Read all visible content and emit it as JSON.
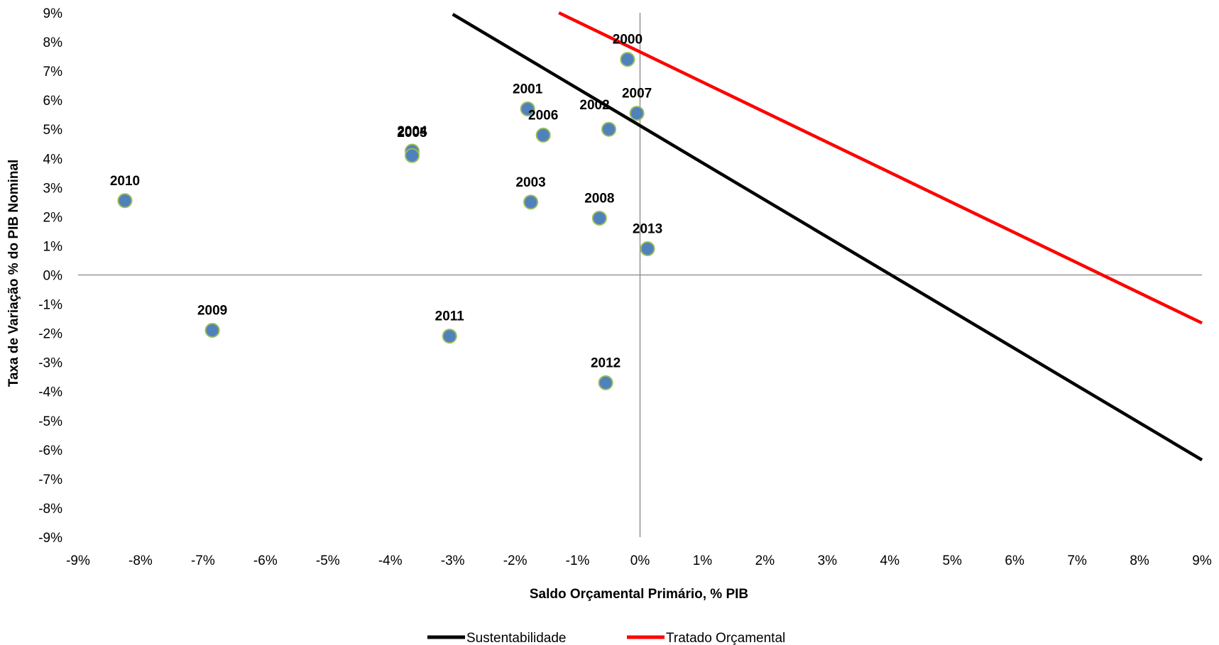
{
  "chart_data": {
    "type": "scatter",
    "title": "",
    "xlabel": "Saldo Orçamental Primário, % PIB",
    "ylabel": "Taxa de Variação % do PIB Nominal",
    "xlim": [
      -9,
      9
    ],
    "ylim": [
      -9,
      9
    ],
    "x_ticks": [
      "-9%",
      "-8%",
      "-7%",
      "-6%",
      "-5%",
      "-4%",
      "-3%",
      "-2%",
      "-1%",
      "0%",
      "1%",
      "2%",
      "3%",
      "4%",
      "5%",
      "6%",
      "7%",
      "8%",
      "9%"
    ],
    "y_ticks": [
      "9%",
      "8%",
      "7%",
      "6%",
      "5%",
      "4%",
      "3%",
      "2%",
      "1%",
      "0%",
      "-1%",
      "-2%",
      "-3%",
      "-4%",
      "-5%",
      "-6%",
      "-7%",
      "-8%",
      "-9%"
    ],
    "grid": false,
    "zero_axes": true,
    "points": [
      {
        "label": "2000",
        "x": -0.2,
        "y": 7.4
      },
      {
        "label": "2001",
        "x": -1.8,
        "y": 5.7
      },
      {
        "label": "2002",
        "x": -0.5,
        "y": 5.0
      },
      {
        "label": "2003",
        "x": -1.75,
        "y": 2.5
      },
      {
        "label": "2004",
        "x": -3.65,
        "y": 4.25
      },
      {
        "label": "2005",
        "x": -3.65,
        "y": 4.1
      },
      {
        "label": "2006",
        "x": -1.55,
        "y": 4.8
      },
      {
        "label": "2007",
        "x": -0.05,
        "y": 5.55
      },
      {
        "label": "2008",
        "x": -0.65,
        "y": 1.95
      },
      {
        "label": "2009",
        "x": -6.85,
        "y": -1.9
      },
      {
        "label": "2010",
        "x": -8.25,
        "y": 2.55
      },
      {
        "label": "2011",
        "x": -3.05,
        "y": -2.1
      },
      {
        "label": "2012",
        "x": -0.55,
        "y": -3.7
      },
      {
        "label": "2013",
        "x": 0.12,
        "y": 0.9
      }
    ],
    "series": [
      {
        "name": "Sustentabilidade",
        "color": "#000000",
        "x": [
          -3.0,
          9.0
        ],
        "y": [
          8.95,
          -6.35
        ]
      },
      {
        "name": "Tratado Orçamental",
        "color": "#ff0000",
        "x": [
          -1.3,
          9.0
        ],
        "y": [
          9.0,
          -1.65
        ]
      }
    ],
    "point_color": "#4f81bd",
    "point_border_color": "#9bbb59",
    "legend_position": "bottom"
  }
}
